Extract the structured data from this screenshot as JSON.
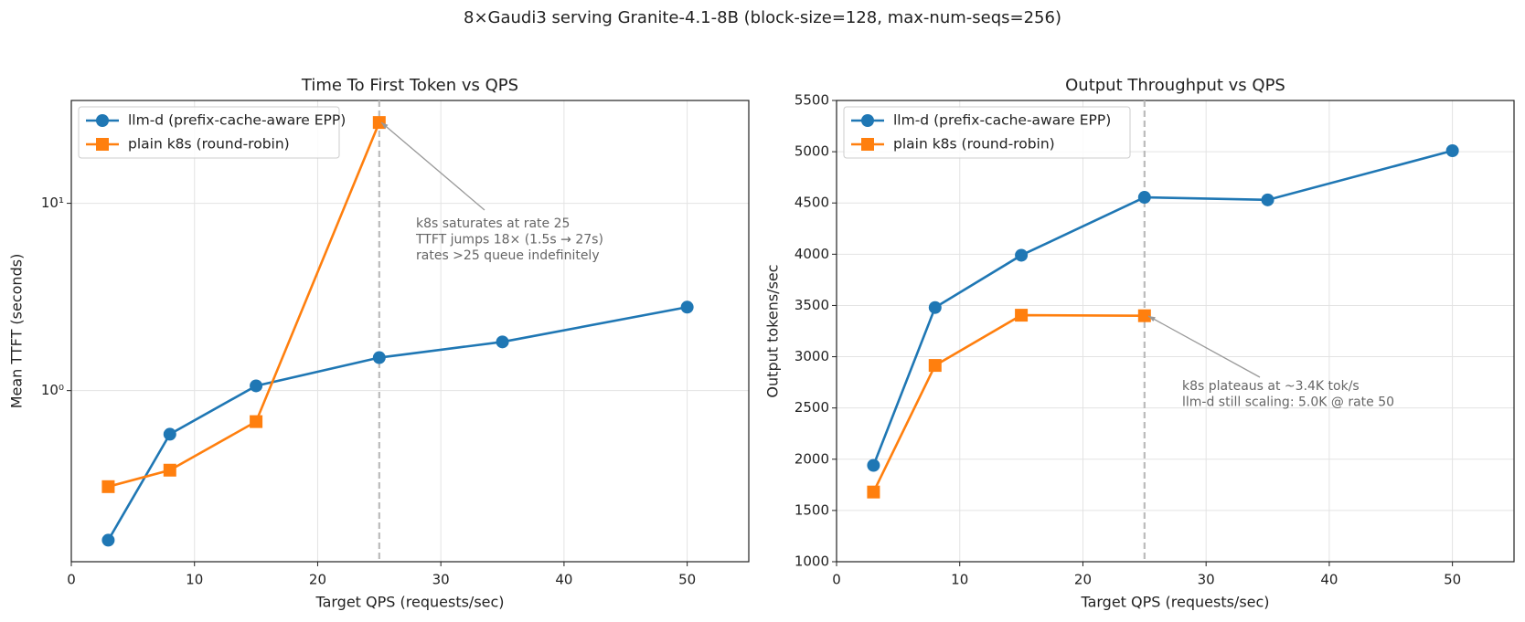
{
  "title": "8×Gaudi3 serving Granite-4.1-8B  (block-size=128, max-num-seqs=256)",
  "chart_data": [
    {
      "type": "line",
      "title": "Time To First Token vs QPS",
      "x_label": "Target QPS (requests/sec)",
      "y_label": "Mean TTFT (seconds)",
      "log_y": true,
      "grid": true,
      "legend": "upper left",
      "xlim": [
        0,
        55
      ],
      "xticks": [
        0,
        10,
        20,
        30,
        40,
        50
      ],
      "ylim": [
        0.122,
        35.4
      ],
      "yticks": [
        {
          "value": 1,
          "label": "10⁰"
        },
        {
          "value": 10,
          "label": "10¹"
        }
      ],
      "vline": 25,
      "series": [
        {
          "name": "llm-d (prefix-cache-aware EPP)",
          "color": "#1f77b4",
          "marker": "o",
          "x": [
            3,
            8,
            15,
            25,
            35,
            50
          ],
          "values": [
            0.159,
            0.585,
            1.06,
            1.5,
            1.82,
            2.79
          ]
        },
        {
          "name": "plain k8s (round-robin)",
          "color": "#ff7f0e",
          "marker": "s",
          "x": [
            3,
            8,
            15,
            25
          ],
          "values": [
            0.307,
            0.376,
            0.683,
            27
          ]
        }
      ],
      "annotation": [
        "k8s saturates at rate 25",
        "TTFT jumps 18× (1.5s → 27s)",
        "rates >25 queue indefinitely"
      ]
    },
    {
      "type": "line",
      "title": "Output Throughput vs QPS",
      "x_label": "Target QPS (requests/sec)",
      "y_label": "Output tokens/sec",
      "log_y": false,
      "grid": true,
      "legend": "upper left",
      "xlim": [
        0,
        55
      ],
      "xticks": [
        0,
        10,
        20,
        30,
        40,
        50
      ],
      "ylim": [
        1000,
        5500
      ],
      "yticks": [
        1000,
        1500,
        2000,
        2500,
        3000,
        3500,
        4000,
        4500,
        5000,
        5500
      ],
      "vline": 25,
      "series": [
        {
          "name": "llm-d (prefix-cache-aware EPP)",
          "color": "#1f77b4",
          "marker": "o",
          "x": [
            3,
            8,
            15,
            25,
            35,
            50
          ],
          "values": [
            1940,
            3480,
            3990,
            4555,
            4530,
            5010
          ]
        },
        {
          "name": "plain k8s (round-robin)",
          "color": "#ff7f0e",
          "marker": "s",
          "x": [
            3,
            8,
            15,
            25
          ],
          "values": [
            1680,
            2915,
            3405,
            3400
          ]
        }
      ],
      "annotation": [
        "k8s plateaus at ~3.4K tok/s",
        "llm-d still scaling: 5.0K @ rate 50"
      ]
    }
  ]
}
